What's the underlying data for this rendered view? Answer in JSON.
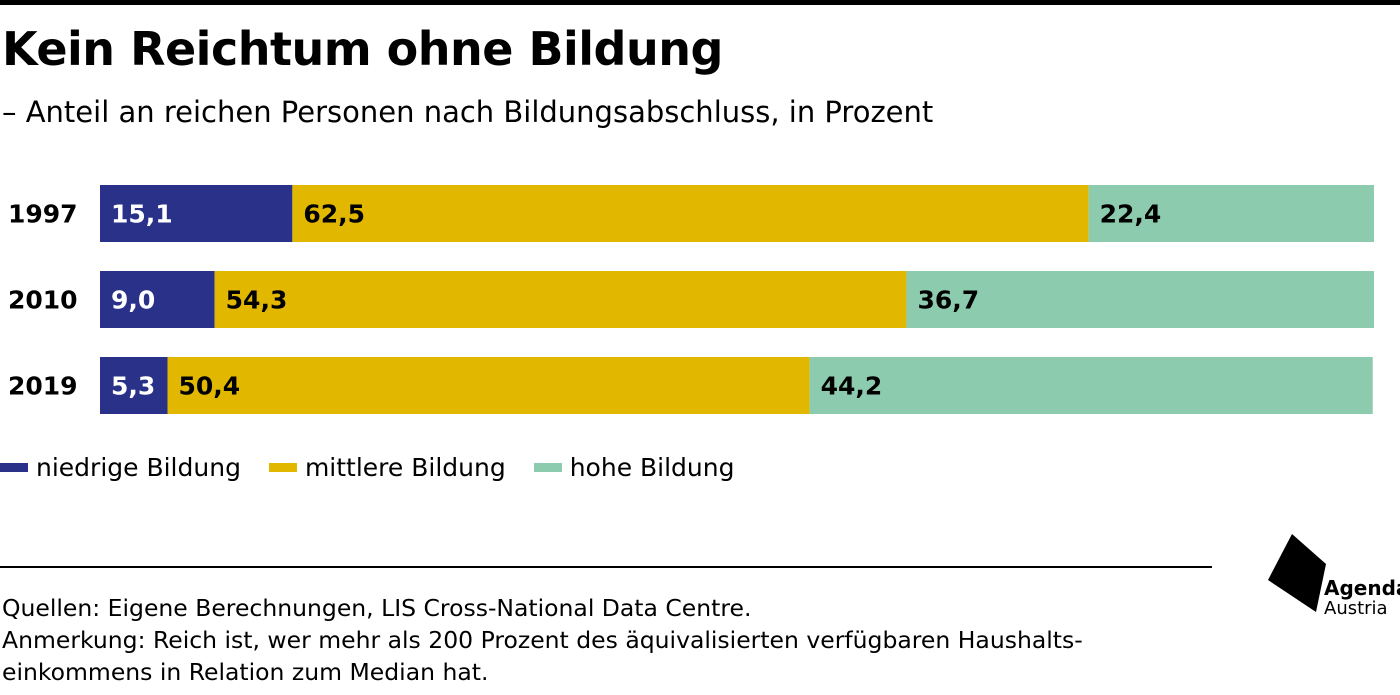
{
  "title": "Kein Reichtum ohne Bildung",
  "subtitle": "– Anteil an reichen Personen nach Bildungsabschluss, in Prozent",
  "colors": {
    "niedrige": "#2a3188",
    "mittlere": "#e1b700",
    "hohe": "#8ccbae"
  },
  "chart_data": {
    "type": "bar",
    "orientation": "horizontal",
    "stacked": true,
    "categories": [
      "1997",
      "2010",
      "2019"
    ],
    "series": [
      {
        "name": "niedrige Bildung",
        "values": [
          15.1,
          9.0,
          5.3
        ],
        "labels": [
          "15,1",
          "9,0",
          "5,3"
        ],
        "color": "#2a3188",
        "label_color": "#ffffff"
      },
      {
        "name": "mittlere Bildung",
        "values": [
          62.5,
          54.3,
          50.4
        ],
        "labels": [
          "62,5",
          "54,3",
          "50,4"
        ],
        "color": "#e1b700",
        "label_color": "#000000"
      },
      {
        "name": "hohe Bildung",
        "values": [
          22.4,
          36.7,
          44.2
        ],
        "labels": [
          "22,4",
          "36,7",
          "44,2"
        ],
        "color": "#8ccbae",
        "label_color": "#000000"
      }
    ],
    "xlim": [
      0,
      100
    ],
    "grid": false,
    "legend": "bottom-left"
  },
  "legend": [
    {
      "label": "niedrige Bildung",
      "color": "#2a3188"
    },
    {
      "label": "mittlere Bildung",
      "color": "#e1b700"
    },
    {
      "label": "hohe Bildung",
      "color": "#8ccbae"
    }
  ],
  "footer": {
    "sources": "Quellen: Eigene Berechnungen, LIS Cross-National Data Centre.",
    "note_line1": "Anmerkung: Reich ist, wer mehr als 200 Prozent des äquivalisierten verfügbaren Haushalts-",
    "note_line2": "einkommens in Relation zum Median hat."
  },
  "logo": {
    "name": "agenda-austria-logo",
    "line1": "Agenda",
    "line2": "Austria"
  }
}
